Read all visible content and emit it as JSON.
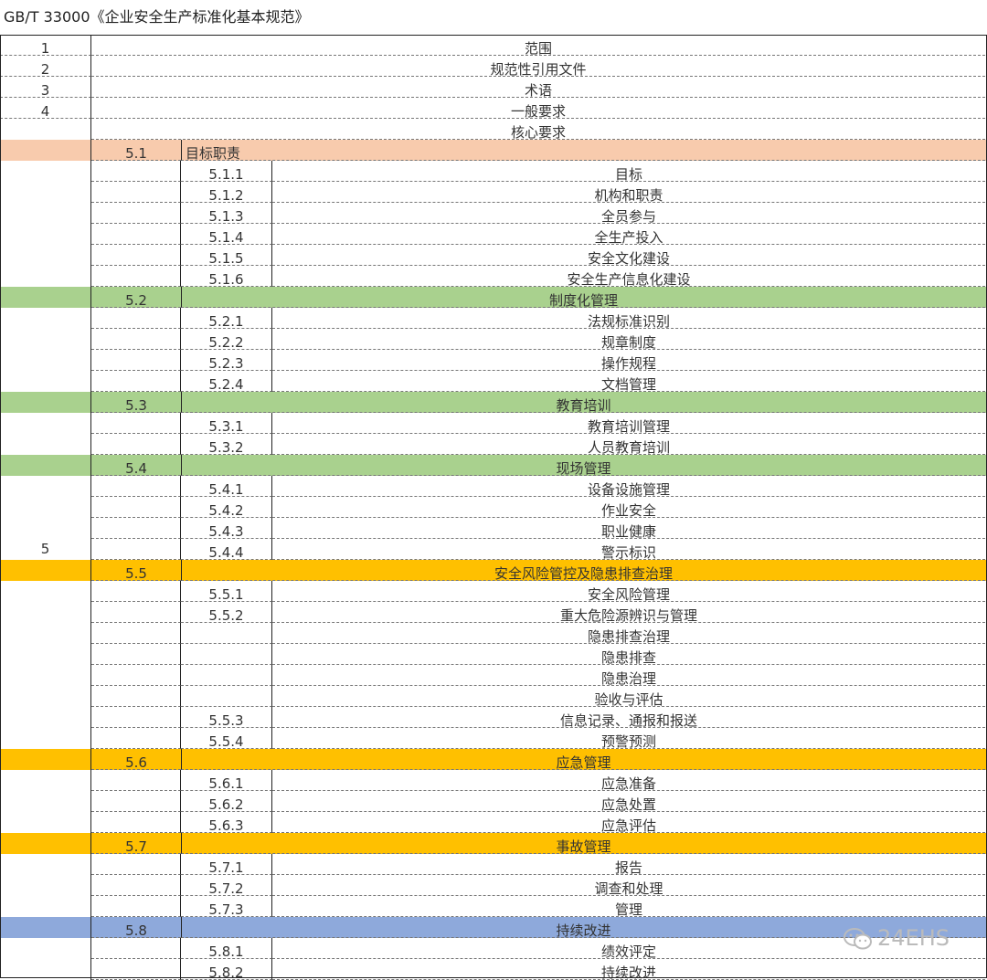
{
  "title": "GB/T 33000《企业安全生产标准化基本规范》",
  "top_rows": [
    {
      "num": "1",
      "label": "范围"
    },
    {
      "num": "2",
      "label": "规范性引用文件"
    },
    {
      "num": "3",
      "label": "术语"
    },
    {
      "num": "4",
      "label": "一般要求"
    }
  ],
  "core": {
    "num": "5",
    "label": "核心要求"
  },
  "sections": [
    {
      "num": "5.1",
      "label": "目标职责",
      "color": "#F8CBAD",
      "align": "left",
      "items": [
        {
          "num": "5.1.1",
          "label": "目标"
        },
        {
          "num": "5.1.2",
          "label": "机构和职责"
        },
        {
          "num": "5.1.3",
          "label": "全员参与"
        },
        {
          "num": "5.1.4",
          "label": "全生产投入"
        },
        {
          "num": "5.1.5",
          "label": "安全文化建设"
        },
        {
          "num": "5.1.6",
          "label": "安全生产信息化建设"
        }
      ]
    },
    {
      "num": "5.2",
      "label": "制度化管理",
      "color": "#A9D18E",
      "align": "center",
      "items": [
        {
          "num": "5.2.1",
          "label": "法规标准识别"
        },
        {
          "num": "5.2.2",
          "label": "规章制度"
        },
        {
          "num": "5.2.3",
          "label": "操作规程"
        },
        {
          "num": "5.2.4",
          "label": "文档管理"
        }
      ]
    },
    {
      "num": "5.3",
      "label": "教育培训",
      "color": "#A9D18E",
      "align": "center",
      "items": [
        {
          "num": "5.3.1",
          "label": "教育培训管理"
        },
        {
          "num": "5.3.2",
          "label": "人员教育培训"
        }
      ]
    },
    {
      "num": "5.4",
      "label": "现场管理",
      "color": "#A9D18E",
      "align": "center",
      "items": [
        {
          "num": "5.4.1",
          "label": "设备设施管理"
        },
        {
          "num": "5.4.2",
          "label": "作业安全"
        },
        {
          "num": "5.4.3",
          "label": "职业健康"
        },
        {
          "num": "5.4.4",
          "label": "警示标识"
        }
      ]
    },
    {
      "num": "5.5",
      "label": "安全风险管控及隐患排查治理",
      "color": "#FFC000",
      "align": "center",
      "items": [
        {
          "num": "5.5.1",
          "label": "安全风险管理"
        },
        {
          "num": "5.5.2",
          "label": "重大危险源辨识与管理"
        },
        {
          "num": "",
          "label": "隐患排查治理"
        },
        {
          "num": "",
          "label": "隐患排查"
        },
        {
          "num": "",
          "label": "隐患治理"
        },
        {
          "num": "",
          "label": "验收与评估"
        },
        {
          "num": "5.5.3",
          "label": "信息记录、通报和报送"
        },
        {
          "num": "5.5.4",
          "label": "预警预测"
        }
      ]
    },
    {
      "num": "5.6",
      "label": "应急管理",
      "color": "#FFC000",
      "align": "center",
      "items": [
        {
          "num": "5.6.1",
          "label": "应急准备"
        },
        {
          "num": "5.6.2",
          "label": "应急处置"
        },
        {
          "num": "5.6.3",
          "label": "应急评估"
        }
      ]
    },
    {
      "num": "5.7",
      "label": "事故管理",
      "color": "#FFC000",
      "align": "center",
      "items": [
        {
          "num": "5.7.1",
          "label": "报告"
        },
        {
          "num": "5.7.2",
          "label": "调查和处理"
        },
        {
          "num": "5.7.3",
          "label": "管理"
        }
      ]
    },
    {
      "num": "5.8",
      "label": "持续改进",
      "color": "#8EA9DB",
      "align": "center",
      "items": [
        {
          "num": "5.8.1",
          "label": "绩效评定"
        },
        {
          "num": "5.8.2",
          "label": "持续改进"
        }
      ]
    }
  ],
  "watermark": {
    "text": "24EHS",
    "icon": "wechat-icon"
  }
}
